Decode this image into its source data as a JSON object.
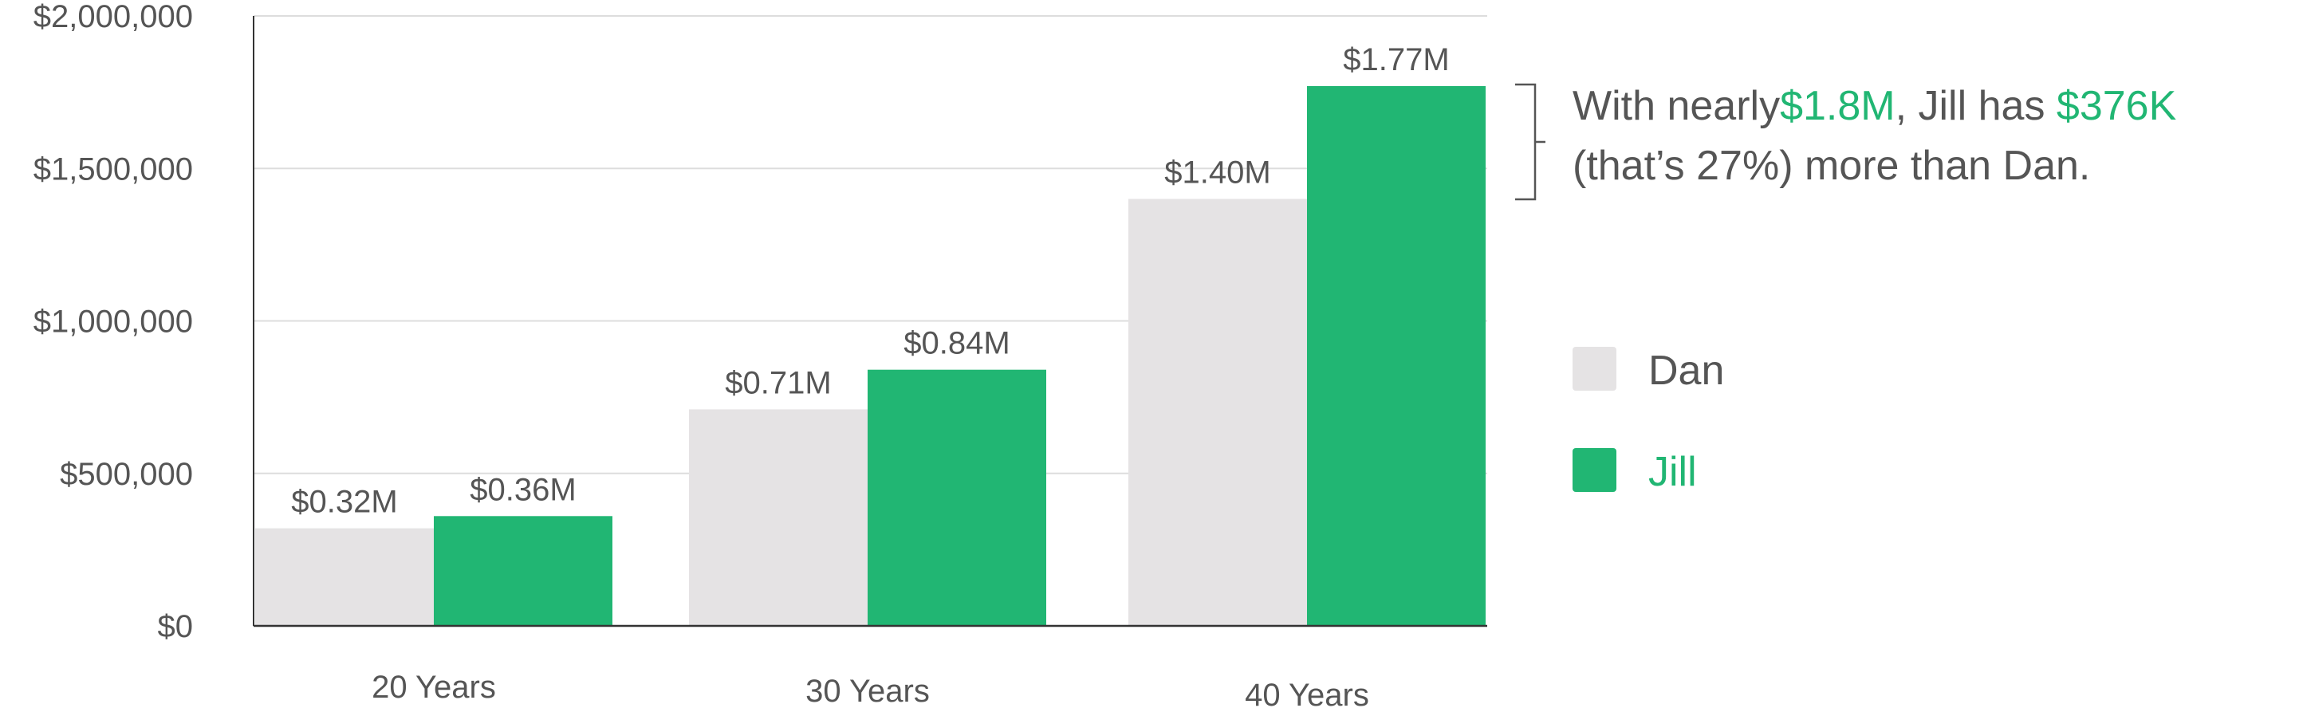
{
  "chart_data": {
    "type": "bar",
    "categories": [
      "20 Years",
      "30 Years",
      "40 Years"
    ],
    "series": [
      {
        "name": "Dan",
        "color": "#e5e3e4",
        "values": [
          320000,
          710000,
          1400000
        ],
        "labels": [
          "$0.32M",
          "$0.71M",
          "$1.40M"
        ]
      },
      {
        "name": "Jill",
        "color": "#21b673",
        "values": [
          360000,
          840000,
          1770000
        ],
        "labels": [
          "$0.36M",
          "$0.84M",
          "$1.77M"
        ]
      }
    ],
    "ylim": [
      0,
      2000000
    ],
    "yticks": [
      0,
      500000,
      1000000,
      1500000,
      2000000
    ],
    "ytick_labels": [
      "$0",
      "$500,000",
      "$1,000,000",
      "$1,500,000",
      "$2,000,000"
    ],
    "grid": true,
    "legend_position": "right"
  },
  "annotation": {
    "line1_prefix": "With nearly",
    "line1_highlight1": "$1.8M",
    "line1_middle": ", Jill has ",
    "line1_highlight2": "$376K",
    "line2": "(that’s 27%) more than Dan."
  },
  "colors": {
    "text": "#555555",
    "grid": "#dddddd",
    "axis": "#333333",
    "accent": "#21b673",
    "dan": "#e5e3e4"
  }
}
